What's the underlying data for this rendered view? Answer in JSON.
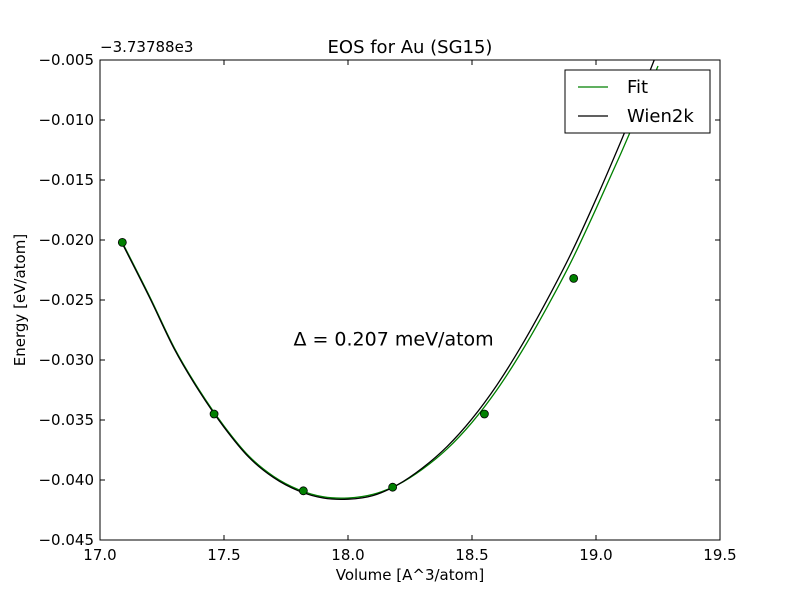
{
  "chart_data": {
    "type": "line",
    "title": "EOS for Au (SG15)",
    "xlabel": "Volume [A^3/atom]",
    "ylabel": "Energy [eV/atom]",
    "y_offset_label": "−3.73788e3",
    "xlim": [
      17.0,
      19.5
    ],
    "ylim": [
      -0.045,
      -0.005
    ],
    "x_ticks": [
      17.0,
      17.5,
      18.0,
      18.5,
      19.0,
      19.5
    ],
    "x_tick_labels": [
      "17.0",
      "17.5",
      "18.0",
      "18.5",
      "19.0",
      "19.5"
    ],
    "y_ticks": [
      -0.005,
      -0.01,
      -0.015,
      -0.02,
      -0.025,
      -0.03,
      -0.035,
      -0.04,
      -0.045
    ],
    "y_tick_labels": [
      "−0.005",
      "−0.010",
      "−0.015",
      "−0.020",
      "−0.025",
      "−0.030",
      "−0.035",
      "−0.040",
      "−0.045"
    ],
    "grid": false,
    "legend_position": "top-right",
    "series": [
      {
        "name": "Fit",
        "color": "#008000",
        "kind": "line",
        "x": [
          17.09,
          17.2,
          17.3,
          17.4,
          17.5,
          17.6,
          17.7,
          17.8,
          17.9,
          18.0,
          18.1,
          18.2,
          18.3,
          18.4,
          18.5,
          18.6,
          18.7,
          18.8,
          18.9,
          19.0,
          19.1,
          19.2,
          19.25
        ],
        "y": [
          -0.0202,
          -0.0247,
          -0.029,
          -0.0325,
          -0.0355,
          -0.038,
          -0.0397,
          -0.0408,
          -0.0414,
          -0.0415,
          -0.0412,
          -0.0404,
          -0.0391,
          -0.0374,
          -0.0352,
          -0.0325,
          -0.0293,
          -0.0257,
          -0.0218,
          -0.0174,
          -0.0128,
          -0.008,
          -0.0055
        ]
      },
      {
        "name": "Wien2k",
        "color": "#000000",
        "kind": "line",
        "x": [
          17.09,
          17.2,
          17.3,
          17.4,
          17.5,
          17.6,
          17.7,
          17.8,
          17.9,
          18.0,
          18.1,
          18.2,
          18.3,
          18.4,
          18.5,
          18.6,
          18.7,
          18.8,
          18.9,
          19.0,
          19.1,
          19.2,
          19.25
        ],
        "y": [
          -0.0203,
          -0.0248,
          -0.0291,
          -0.0326,
          -0.0356,
          -0.0381,
          -0.0398,
          -0.0409,
          -0.0415,
          -0.0416,
          -0.0413,
          -0.0404,
          -0.039,
          -0.0372,
          -0.0349,
          -0.0321,
          -0.0288,
          -0.0251,
          -0.0211,
          -0.0166,
          -0.0118,
          -0.0068,
          -0.0042
        ]
      },
      {
        "name": "",
        "color": "#008000",
        "kind": "points",
        "x": [
          17.09,
          17.46,
          17.82,
          18.18,
          18.55,
          18.91
        ],
        "y": [
          -0.0202,
          -0.0345,
          -0.0409,
          -0.0406,
          -0.0345,
          -0.0232
        ]
      }
    ],
    "annotations": [
      {
        "text": "Δ = 0.207 meV/atom",
        "x": 17.78,
        "y": -0.0288
      }
    ]
  }
}
